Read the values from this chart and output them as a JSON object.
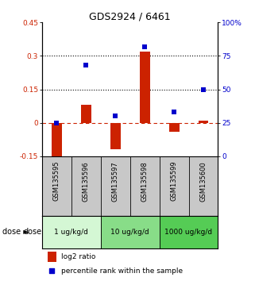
{
  "title": "GDS2924 / 6461",
  "samples": [
    "GSM135595",
    "GSM135596",
    "GSM135597",
    "GSM135598",
    "GSM135599",
    "GSM135600"
  ],
  "log2_ratio": [
    -0.165,
    0.08,
    -0.12,
    0.32,
    -0.04,
    0.01
  ],
  "percentile_rank": [
    25,
    68,
    30,
    82,
    33,
    50
  ],
  "left_ylim": [
    -0.15,
    0.45
  ],
  "right_ylim": [
    0,
    100
  ],
  "left_yticks": [
    -0.15,
    0.0,
    0.15,
    0.3,
    0.45
  ],
  "left_yticklabels": [
    "-0.15",
    "0",
    "0.15",
    "0.3",
    "0.45"
  ],
  "right_yticks": [
    0,
    25,
    50,
    75,
    100
  ],
  "right_yticklabels": [
    "0",
    "25",
    "50",
    "75",
    "100%"
  ],
  "bar_color": "#cc2200",
  "dot_color": "#0000cc",
  "zero_line_color": "#cc2200",
  "hline_color": "#000000",
  "hline_values": [
    0.15,
    0.3
  ],
  "dose_groups": [
    {
      "label": "1 ug/kg/d",
      "indices": [
        0,
        1
      ],
      "color": "#d4f7d4"
    },
    {
      "label": "10 ug/kg/d",
      "indices": [
        2,
        3
      ],
      "color": "#88dd88"
    },
    {
      "label": "1000 ug/kg/d",
      "indices": [
        4,
        5
      ],
      "color": "#55cc55"
    }
  ],
  "dose_label": "dose",
  "legend_bar_label": "log2 ratio",
  "legend_dot_label": "percentile rank within the sample",
  "bg_color": "#ffffff",
  "plot_bg_color": "#ffffff",
  "sample_bg_color": "#c8c8c8",
  "tick_label_color_left": "#cc2200",
  "tick_label_color_right": "#0000cc",
  "bar_width": 0.35
}
